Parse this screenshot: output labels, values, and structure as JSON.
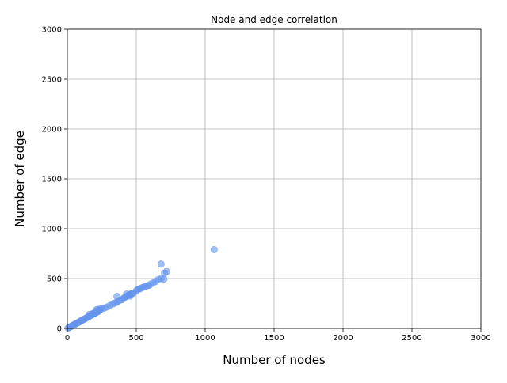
{
  "chart_data": {
    "type": "scatter",
    "title": "Node and edge correlation",
    "xlabel": "Number of nodes",
    "ylabel": "Number of edge",
    "xlim": [
      0,
      3000
    ],
    "ylim": [
      0,
      3000
    ],
    "xticks": [
      0,
      500,
      1000,
      1500,
      2000,
      2500,
      3000
    ],
    "yticks": [
      0,
      500,
      1000,
      1500,
      2000,
      2500,
      3000
    ],
    "grid": true,
    "marker_color": "#6495ed",
    "series": [
      {
        "points": [
          [
            5,
            4
          ],
          [
            12,
            9
          ],
          [
            18,
            14
          ],
          [
            25,
            19
          ],
          [
            32,
            24
          ],
          [
            40,
            30
          ],
          [
            48,
            36
          ],
          [
            55,
            42
          ],
          [
            62,
            47
          ],
          [
            70,
            53
          ],
          [
            78,
            59
          ],
          [
            85,
            64
          ],
          [
            92,
            70
          ],
          [
            100,
            76
          ],
          [
            108,
            82
          ],
          [
            115,
            88
          ],
          [
            122,
            92
          ],
          [
            130,
            99
          ],
          [
            138,
            105
          ],
          [
            145,
            110
          ],
          [
            152,
            116
          ],
          [
            160,
            122
          ],
          [
            168,
            128
          ],
          [
            175,
            133
          ],
          [
            182,
            139
          ],
          [
            190,
            145
          ],
          [
            198,
            150
          ],
          [
            205,
            156
          ],
          [
            212,
            161
          ],
          [
            220,
            168
          ],
          [
            228,
            174
          ],
          [
            235,
            180
          ],
          [
            160,
            140
          ],
          [
            185,
            150
          ],
          [
            210,
            185
          ],
          [
            220,
            190
          ],
          [
            240,
            195
          ],
          [
            255,
            200
          ],
          [
            270,
            205
          ],
          [
            290,
            215
          ],
          [
            310,
            230
          ],
          [
            330,
            245
          ],
          [
            345,
            255
          ],
          [
            360,
            262
          ],
          [
            370,
            275
          ],
          [
            385,
            285
          ],
          [
            400,
            290
          ],
          [
            410,
            305
          ],
          [
            420,
            315
          ],
          [
            430,
            320
          ],
          [
            440,
            330
          ],
          [
            450,
            340
          ],
          [
            460,
            345
          ],
          [
            470,
            350
          ],
          [
            480,
            355
          ],
          [
            360,
            320
          ],
          [
            430,
            345
          ],
          [
            455,
            325
          ],
          [
            500,
            375
          ],
          [
            510,
            390
          ],
          [
            520,
            395
          ],
          [
            530,
            400
          ],
          [
            545,
            410
          ],
          [
            560,
            420
          ],
          [
            575,
            425
          ],
          [
            590,
            430
          ],
          [
            600,
            440
          ],
          [
            620,
            455
          ],
          [
            640,
            470
          ],
          [
            660,
            490
          ],
          [
            680,
            500
          ],
          [
            700,
            495
          ],
          [
            705,
            555
          ],
          [
            720,
            570
          ],
          [
            680,
            645
          ],
          [
            1065,
            790
          ]
        ]
      }
    ]
  }
}
